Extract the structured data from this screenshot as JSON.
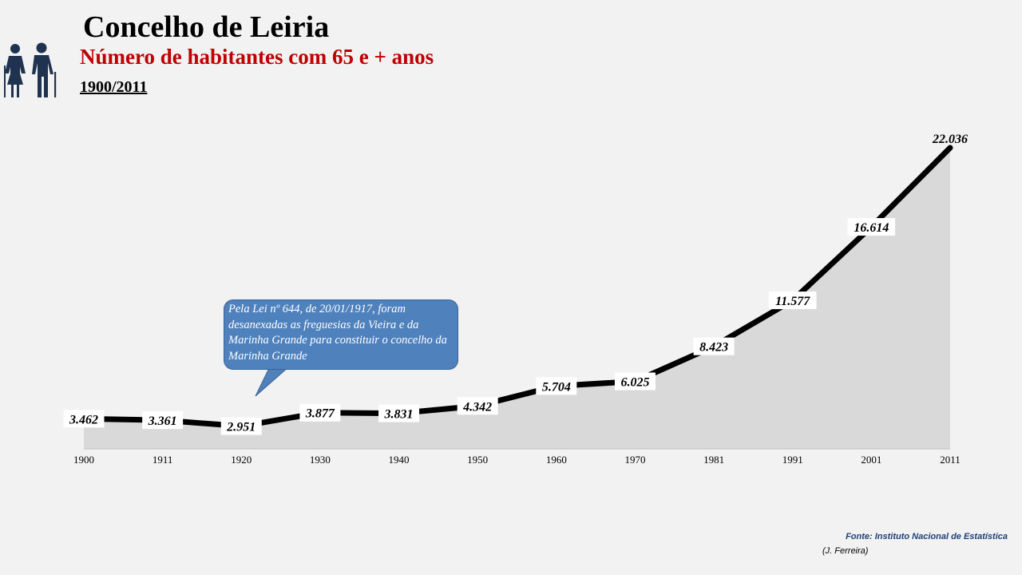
{
  "header": {
    "title": "Concelho de Leiria",
    "subtitle": "Número de habitantes com 65 e + anos",
    "period": "1900/2011",
    "logo_icon": "elderly-couple-icon"
  },
  "annotation": {
    "text": "Pela Lei nº 644, de 20/01/1917, foram desanexadas as freguesias da Vieira e da Marinha Grande para constituir o concelho da Marinha Grande"
  },
  "footer": {
    "source": "Fonte: Instituto Nacional de Estatística",
    "author": "(J. Ferreira)"
  },
  "colors": {
    "line": "#000000",
    "area": "#d9d9d9",
    "title_accent": "#c00000",
    "note_fill": "#4f81bd",
    "source_text": "#1f3f7a"
  },
  "chart_data": {
    "type": "area",
    "categories": [
      "1900",
      "1911",
      "1920",
      "1930",
      "1940",
      "1950",
      "1960",
      "1970",
      "1981",
      "1991",
      "2001",
      "2011"
    ],
    "values": [
      3462,
      3361,
      2951,
      3877,
      3831,
      4342,
      5704,
      6025,
      8423,
      11577,
      16614,
      22036
    ],
    "value_labels": [
      "3.462",
      "3.361",
      "2.951",
      "3.877",
      "3.831",
      "4.342",
      "5.704",
      "6.025",
      "8.423",
      "11.577",
      "16.614",
      "22.036"
    ],
    "grid": false,
    "legend": "none"
  }
}
